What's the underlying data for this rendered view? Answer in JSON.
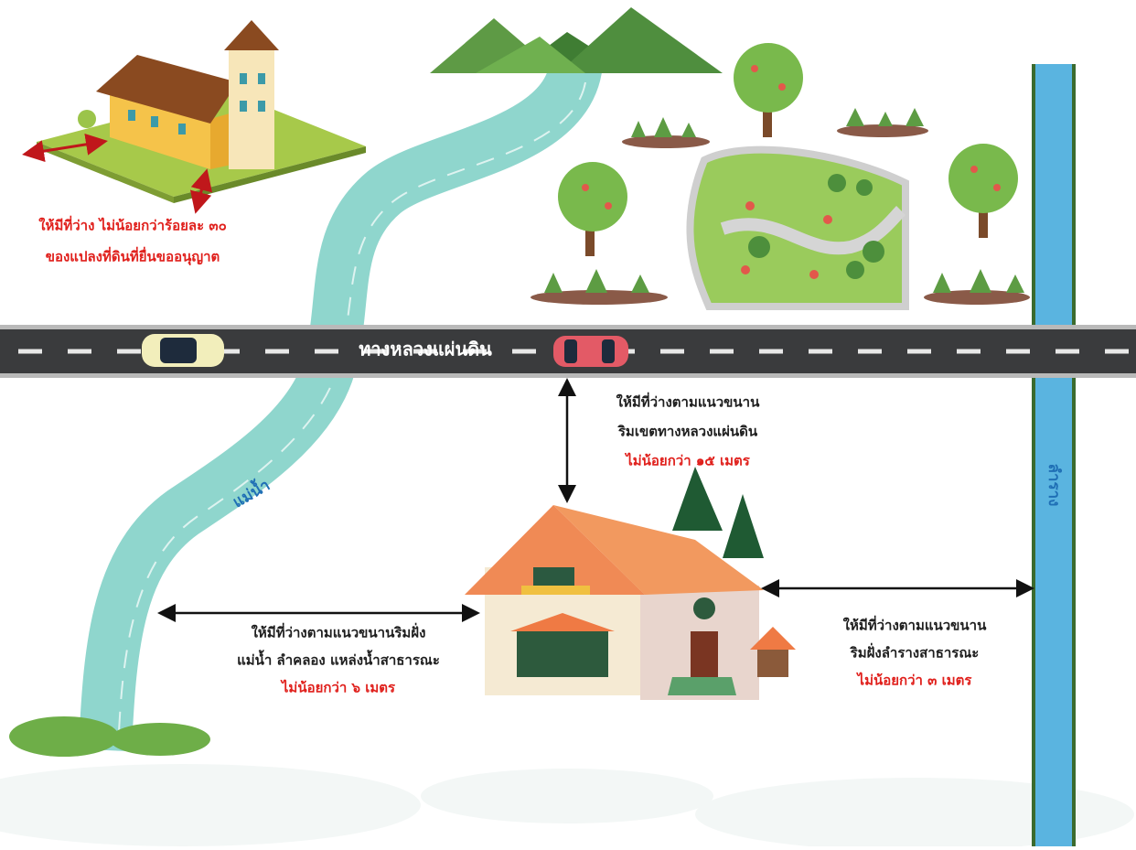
{
  "labels": {
    "open_space": [
      "ให้มีที่ว่าง ไม่น้อยกว่าร้อยละ ๓๐",
      "ของแปลงที่ดินที่ยื่นขออนุญาต"
    ],
    "road": "ทางหลวงแผ่นดิน",
    "highway_setback": [
      "ให้มีที่ว่างตามแนวขนาน",
      "ริมเขตทางหลวงแผ่นดิน",
      "ไม่น้อยกว่า ๑๕ เมตร"
    ],
    "river": "แม่น้ำ",
    "canal": "ลำราง",
    "river_setback": [
      "ให้มีที่ว่างตามแนวขนานริมฝั่ง",
      "แม่น้ำ ลำคลอง แหล่งน้ำสาธารณะ",
      "ไม่น้อยกว่า ๖ เมตร"
    ],
    "canal_setback": [
      "ให้มีที่ว่างตามแนวขนาน",
      "ริมฝั่งลำรางสาธารณะ",
      "ไม่น้อยกว่า ๓ เมตร"
    ]
  }
}
